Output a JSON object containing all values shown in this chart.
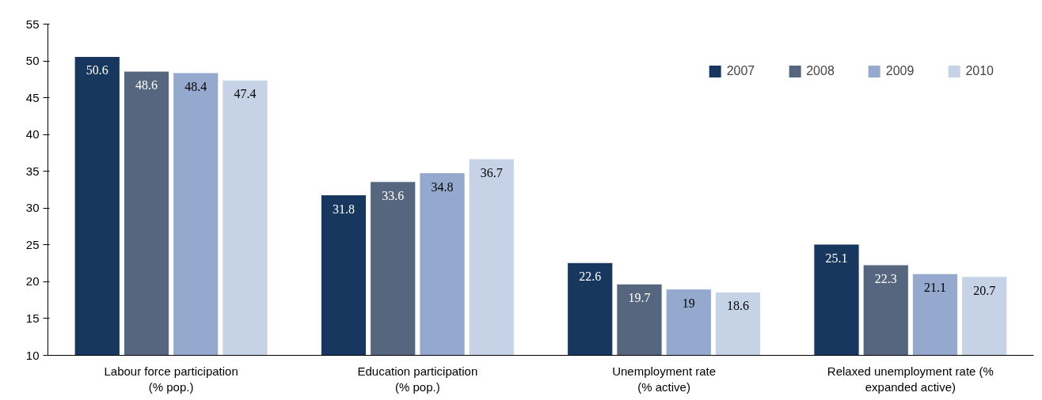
{
  "chart_data": {
    "type": "bar",
    "categories": [
      "Labour force participation\n(% pop.)",
      "Education participation\n(% pop.)",
      "Unemployment rate\n(% active)",
      "Relaxed unemployment rate (%\nexpanded active)"
    ],
    "series": [
      {
        "name": "2007",
        "color": "#17375e",
        "values": [
          50.6,
          31.8,
          22.6,
          25.1
        ]
      },
      {
        "name": "2008",
        "color": "#55667e",
        "values": [
          48.6,
          33.6,
          19.7,
          22.3
        ]
      },
      {
        "name": "2009",
        "color": "#95a9cf",
        "values": [
          48.4,
          34.8,
          19,
          21.1
        ]
      },
      {
        "name": "2010",
        "color": "#c6d3e6",
        "values": [
          47.4,
          36.7,
          18.6,
          20.7
        ]
      }
    ],
    "ylim": [
      10,
      55
    ],
    "yticks": [
      10,
      15,
      20,
      25,
      30,
      35,
      40,
      45,
      50,
      55
    ],
    "data_labels": true,
    "legend": "top right",
    "grid": false
  }
}
